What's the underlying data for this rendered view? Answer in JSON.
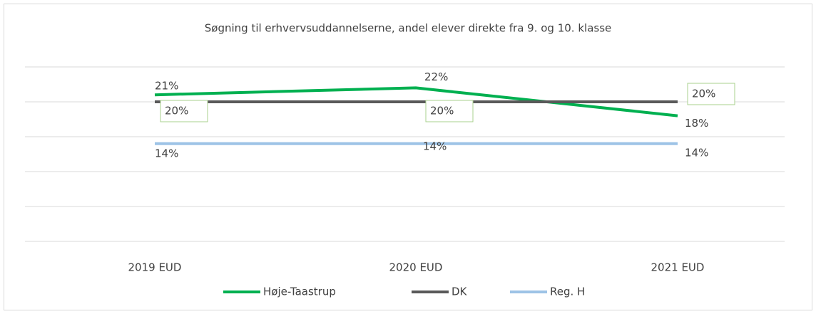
{
  "chart_data": {
    "type": "line",
    "title": "Søgning  til erhvervsuddannelserne,  andel elever direkte  fra 9. og 10. klasse",
    "categories": [
      "2019  EUD",
      "2020 EUD",
      "2021 EUD"
    ],
    "series": [
      {
        "name": "Høje-Taastrup",
        "color": "#00b050",
        "values": [
          21,
          22,
          18
        ],
        "value_labels": [
          "21%",
          "22%",
          "18%"
        ]
      },
      {
        "name": "DK",
        "color": "#595959",
        "values": [
          20,
          20,
          20
        ],
        "value_labels": [
          "20%",
          "20%",
          "20%"
        ]
      },
      {
        "name": "Reg. H",
        "color": "#9dc3e6",
        "values": [
          14,
          14,
          14
        ],
        "value_labels": [
          "14%",
          "14%",
          "14%"
        ]
      }
    ],
    "ylim": [
      0,
      25
    ],
    "yticks": [
      0,
      5,
      10,
      15,
      20,
      25
    ],
    "grid": true,
    "legend": "bottom"
  }
}
